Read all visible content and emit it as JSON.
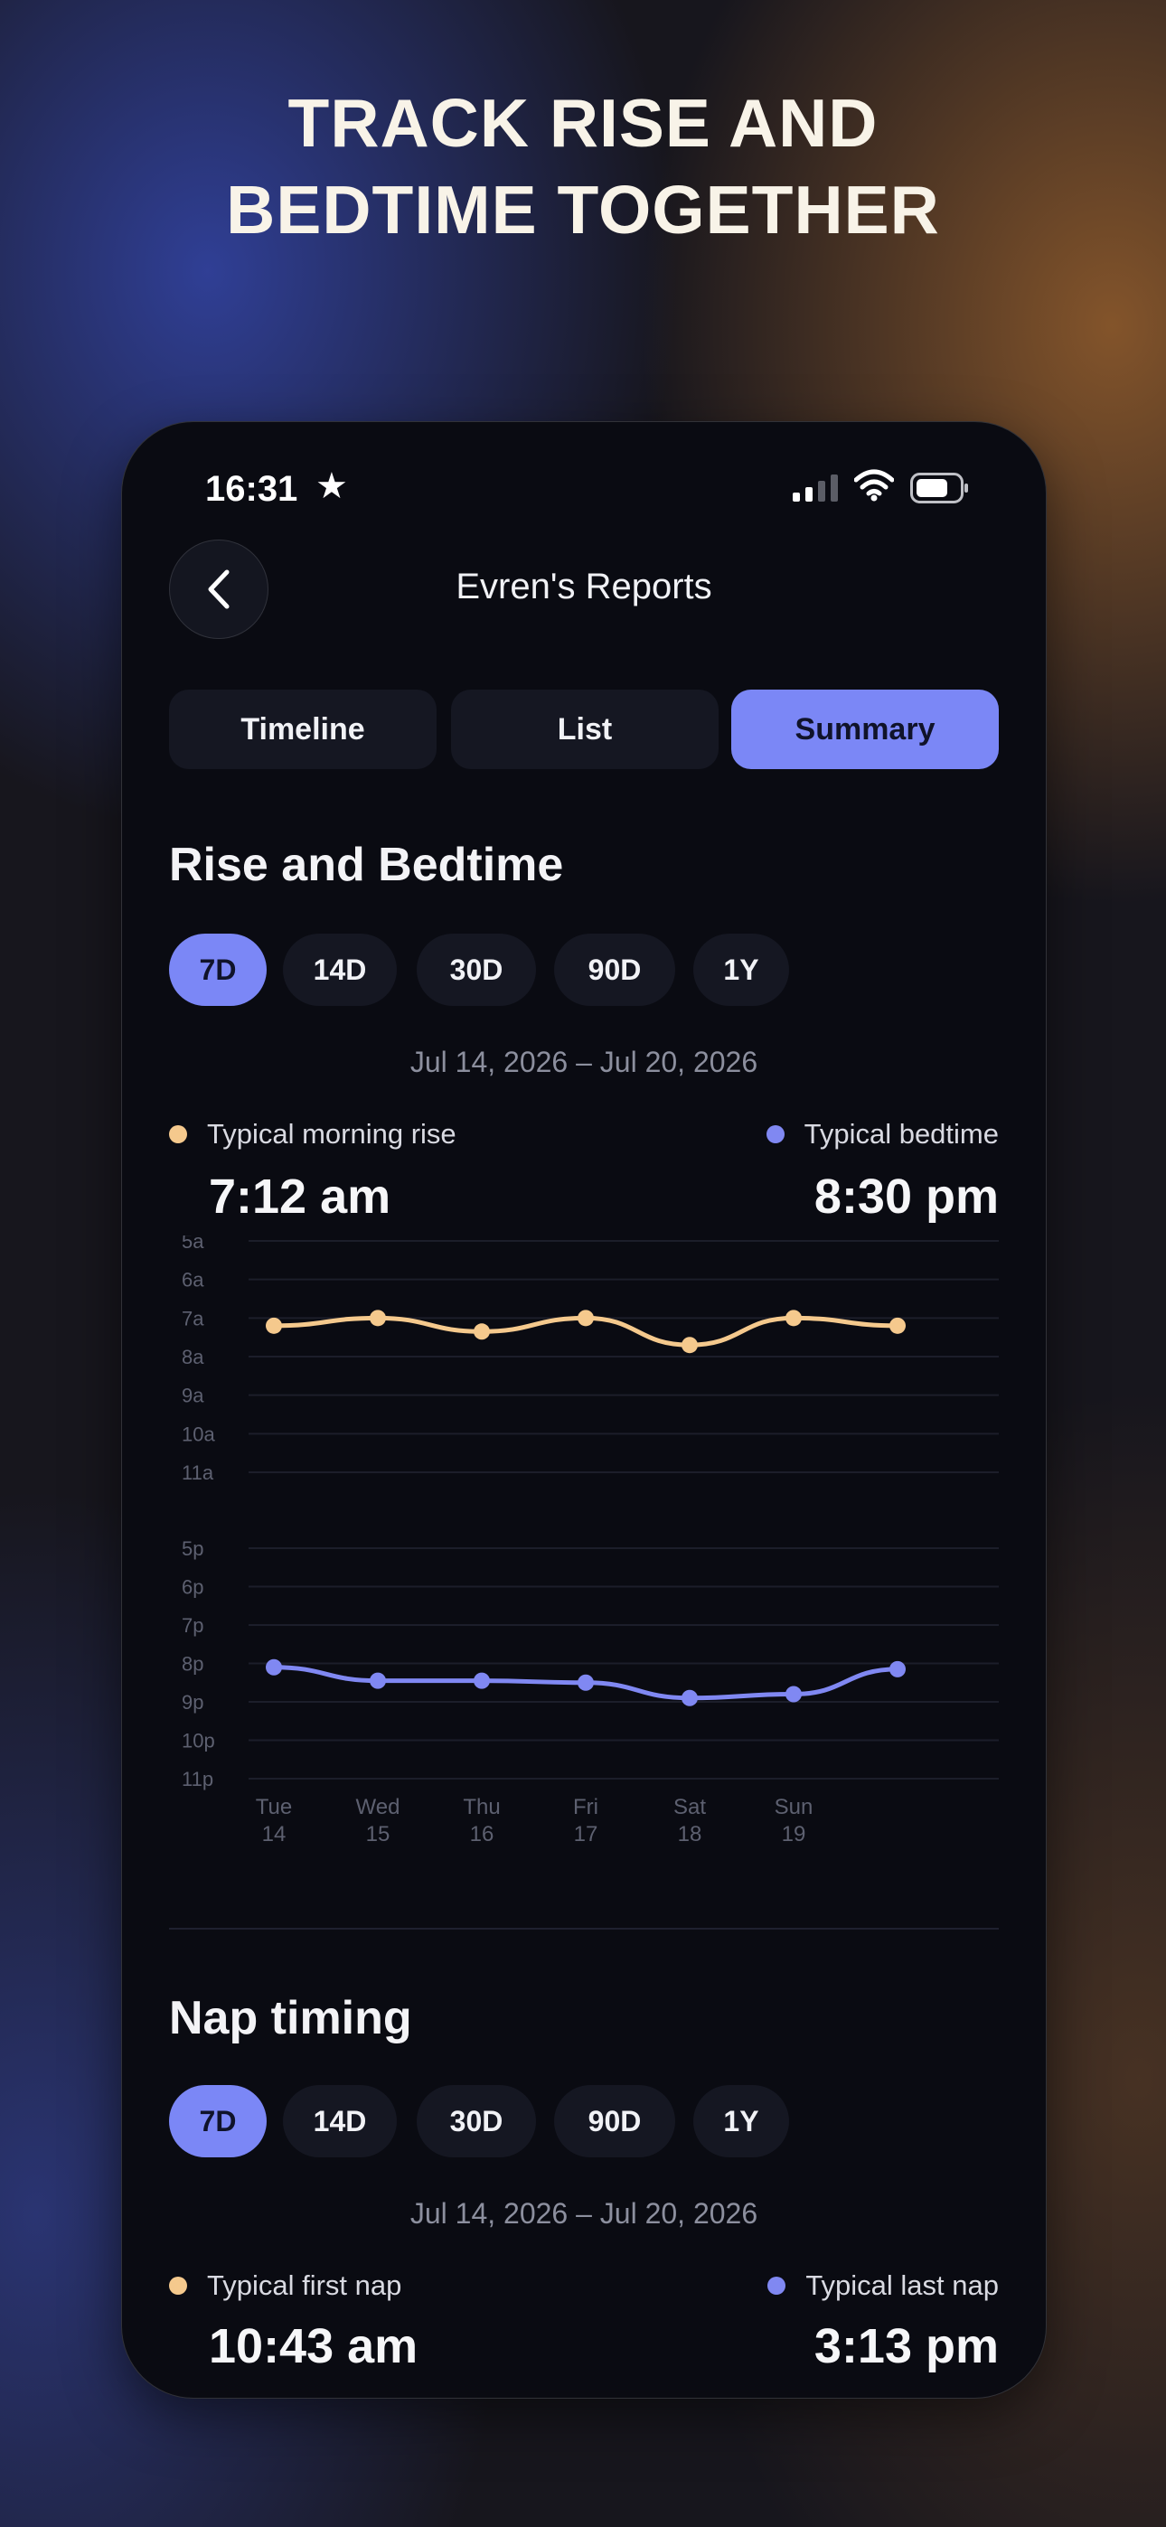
{
  "headline": {
    "line1": "TRACK RISE AND",
    "line2": "BEDTIME TOGETHER"
  },
  "status": {
    "time": "16:31",
    "star_icon": "star-icon",
    "signal_icon": "cellular-signal-icon",
    "wifi_icon": "wifi-icon",
    "battery_icon": "battery-icon"
  },
  "nav": {
    "back_icon": "chevron-left-icon",
    "title": "Evren's Reports"
  },
  "tabs": [
    {
      "label": "Timeline",
      "active": false
    },
    {
      "label": "List",
      "active": false
    },
    {
      "label": "Summary",
      "active": true
    }
  ],
  "rise_bedtime": {
    "title": "Rise and Bedtime",
    "ranges": [
      "7D",
      "14D",
      "30D",
      "90D",
      "1Y"
    ],
    "selected_range": "7D",
    "date_range": "Jul 14, 2026 – Jul 20, 2026",
    "morning_label": "Typical morning rise",
    "morning_value": "7:12 am",
    "bedtime_label": "Typical bedtime",
    "bedtime_value": "8:30 pm",
    "colors": {
      "morning": "#f5c98d",
      "bedtime": "#8088f2",
      "accent": "#7b87f6"
    }
  },
  "chart_data": {
    "type": "line",
    "x_labels": [
      {
        "day": "Tue",
        "date": "14"
      },
      {
        "day": "Wed",
        "date": "15"
      },
      {
        "day": "Thu",
        "date": "16"
      },
      {
        "day": "Fri",
        "date": "17"
      },
      {
        "day": "Sat",
        "date": "18"
      },
      {
        "day": "Sun",
        "date": "19"
      },
      {
        "day": "",
        "date": ""
      }
    ],
    "morning_axis_ticks": [
      "5a",
      "6a",
      "7a",
      "8a",
      "9a",
      "10a",
      "11a"
    ],
    "morning_axis_range": [
      5,
      11
    ],
    "evening_axis_ticks": [
      "5p",
      "6p",
      "7p",
      "8p",
      "9p",
      "10p",
      "11p"
    ],
    "evening_axis_range": [
      17,
      23
    ],
    "series": [
      {
        "values": [
          7.2,
          7.0,
          7.35,
          7.0,
          7.7,
          7.0,
          7.2
        ],
        "color": "#f5c98d"
      },
      {
        "values": [
          20.1,
          20.45,
          20.45,
          20.5,
          20.9,
          20.8,
          20.15
        ],
        "color": "#8088f2"
      }
    ],
    "grid": true
  },
  "nap_timing": {
    "title": "Nap timing",
    "ranges": [
      "7D",
      "14D",
      "30D",
      "90D",
      "1Y"
    ],
    "selected_range": "7D",
    "date_range": "Jul 14, 2026 – Jul 20, 2026",
    "first_label": "Typical first nap",
    "first_value": "10:43 am",
    "last_label": "Typical last nap",
    "last_value": "3:13 pm"
  }
}
